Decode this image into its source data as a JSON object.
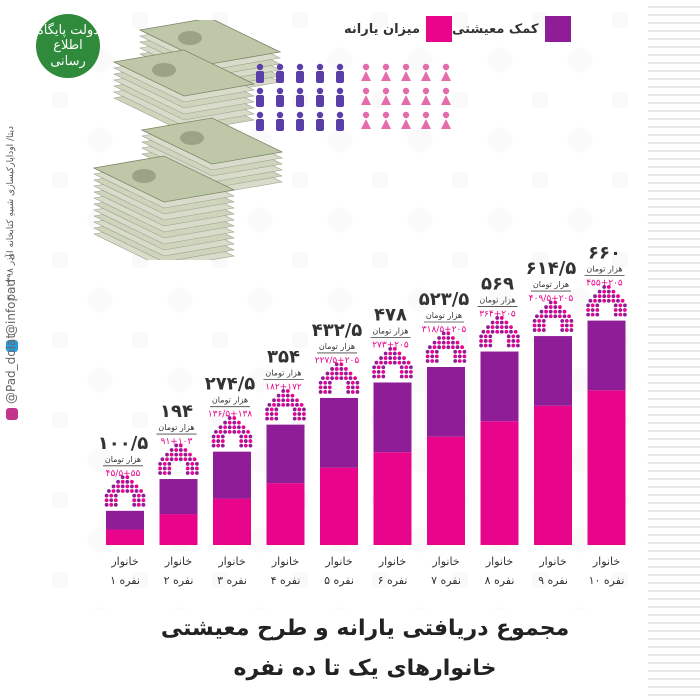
{
  "branding": {
    "logo_text": "دولت پایگاه اطلاع رسانی",
    "footer_credit": "دیتا/ اوداپارکیسازی شبیهِ کتابخانه ای",
    "date": "۳۰ آذر ۱۳۹۸",
    "handle_telegram": "@infopad",
    "handle_instagram": "@Pad_dolat"
  },
  "colors": {
    "subsidy": "#e8058c",
    "livelihood": "#8e1d97",
    "men": "#5a3fa8",
    "women": "#e56cab"
  },
  "legend": {
    "livelihood": "کمک معیشتی",
    "subsidy": "میزان یارانه"
  },
  "title": {
    "line1": "مجموع دریافتی یارانه و طرح معیشتی",
    "line2": "خانوارهای یک تا ده نفره"
  },
  "chart_data": {
    "type": "bar",
    "stacked": true,
    "unit": "هزار تومان",
    "categories": [
      [
        "خانوار",
        "۱ نفره"
      ],
      [
        "خانوار",
        "۲ نفره"
      ],
      [
        "خانوار",
        "۳ نفره"
      ],
      [
        "خانوار",
        "۴ نفره"
      ],
      [
        "خانوار",
        "۵ نفره"
      ],
      [
        "خانوار",
        "۶ نفره"
      ],
      [
        "خانوار",
        "۷ نفره"
      ],
      [
        "خانوار",
        "۸ نفره"
      ],
      [
        "خانوار",
        "۹ نفره"
      ],
      [
        "خانوار",
        "۱۰ نفره"
      ]
    ],
    "series": [
      {
        "name": "میزان یارانه",
        "values": [
          45.5,
          91,
          136.5,
          182,
          227.5,
          273,
          318.5,
          364,
          409.5,
          455
        ]
      },
      {
        "name": "کمک معیشتی",
        "values": [
          55,
          103,
          138,
          172,
          205,
          205,
          205,
          205,
          205,
          205
        ]
      }
    ],
    "totals": [
      100.5,
      194,
      274.5,
      354,
      432.5,
      478,
      523.5,
      569,
      614.5,
      660
    ],
    "total_labels": [
      "۱۰۰/۵",
      "۱۹۴",
      "۲۷۴/۵",
      "۳۵۴",
      "۴۳۲/۵",
      "۴۷۸",
      "۵۲۳/۵",
      "۵۶۹",
      "۶۱۴/۵",
      "۶۶۰"
    ],
    "breakdown_labels": [
      "۴۵/۵+۵۵",
      "۹۱+۱۰۳",
      "۱۳۶/۵+۱۳۸",
      "۱۸۲+۱۷۲",
      "۲۲۷/۵+۲۰۵",
      "۲۷۳+۲۰۵",
      "۳۱۸/۵+۲۰۵",
      "۳۶۴+۲۰۵",
      "۴۰۹/۵+۲۰۵",
      "۴۵۵+۲۰۵"
    ],
    "ylim": [
      0,
      660
    ],
    "legend_position": "top-right"
  }
}
